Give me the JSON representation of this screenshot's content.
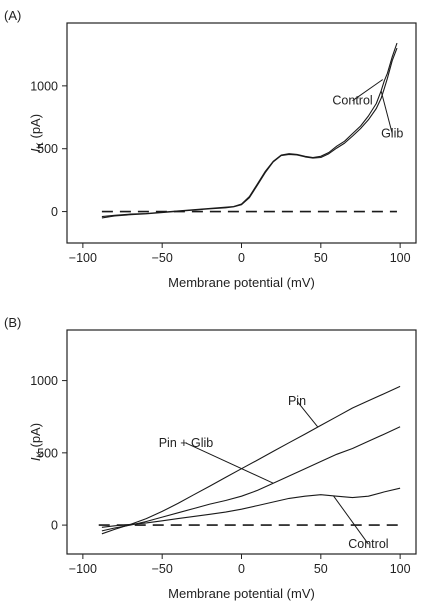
{
  "chart_data": [
    {
      "type": "line",
      "panel_label": "(A)",
      "xlabel": "Membrane potential (mV)",
      "ylabel_main": "I",
      "ylabel_sub": "K",
      "ylabel_unit": " (pA)",
      "xlim": [
        -110,
        110
      ],
      "ylim": [
        -250,
        1500
      ],
      "xticks": [
        -100,
        -50,
        0,
        50,
        100
      ],
      "yticks": [
        0,
        500,
        1000
      ],
      "zero_line": {
        "y": 0,
        "x": [
          -88,
          98
        ],
        "style": "dashed"
      },
      "series": [
        {
          "name": "Control",
          "points": [
            [
              -88,
              -40
            ],
            [
              -80,
              -30
            ],
            [
              -70,
              -20
            ],
            [
              -60,
              -15
            ],
            [
              -50,
              -5
            ],
            [
              -40,
              5
            ],
            [
              -30,
              15
            ],
            [
              -20,
              25
            ],
            [
              -10,
              35
            ],
            [
              -5,
              40
            ],
            [
              0,
              60
            ],
            [
              5,
              120
            ],
            [
              10,
              220
            ],
            [
              15,
              320
            ],
            [
              20,
              400
            ],
            [
              25,
              450
            ],
            [
              30,
              460
            ],
            [
              35,
              455
            ],
            [
              40,
              440
            ],
            [
              45,
              430
            ],
            [
              50,
              440
            ],
            [
              55,
              470
            ],
            [
              60,
              520
            ],
            [
              65,
              560
            ],
            [
              70,
              620
            ],
            [
              75,
              680
            ],
            [
              80,
              760
            ],
            [
              85,
              860
            ],
            [
              88,
              960
            ],
            [
              90,
              1040
            ],
            [
              92,
              1100
            ],
            [
              95,
              1230
            ],
            [
              98,
              1340
            ]
          ]
        },
        {
          "name": "Glib",
          "points": [
            [
              -88,
              -50
            ],
            [
              -80,
              -35
            ],
            [
              -70,
              -25
            ],
            [
              -60,
              -18
            ],
            [
              -50,
              -8
            ],
            [
              -40,
              2
            ],
            [
              -30,
              12
            ],
            [
              -20,
              22
            ],
            [
              -10,
              30
            ],
            [
              -5,
              38
            ],
            [
              0,
              55
            ],
            [
              5,
              110
            ],
            [
              10,
              210
            ],
            [
              15,
              310
            ],
            [
              20,
              395
            ],
            [
              25,
              445
            ],
            [
              30,
              455
            ],
            [
              35,
              450
            ],
            [
              40,
              435
            ],
            [
              45,
              425
            ],
            [
              50,
              430
            ],
            [
              55,
              460
            ],
            [
              60,
              505
            ],
            [
              65,
              545
            ],
            [
              70,
              600
            ],
            [
              75,
              660
            ],
            [
              80,
              730
            ],
            [
              85,
              820
            ],
            [
              88,
              900
            ],
            [
              90,
              980
            ],
            [
              92,
              1060
            ],
            [
              95,
              1200
            ],
            [
              98,
              1300
            ]
          ]
        }
      ],
      "annotations": [
        {
          "text": "Control",
          "x": 70,
          "y": 850,
          "target": [
            89,
            1050
          ]
        },
        {
          "text": "Glib",
          "x": 95,
          "y": 590,
          "target": [
            88,
            960
          ]
        }
      ]
    },
    {
      "type": "line",
      "panel_label": "(B)",
      "xlabel": "Membrane potential (mV)",
      "ylabel_main": "I",
      "ylabel_sub": "K",
      "ylabel_unit": " (pA)",
      "xlim": [
        -110,
        110
      ],
      "ylim": [
        -200,
        1350
      ],
      "xticks": [
        -100,
        -50,
        0,
        50,
        100
      ],
      "yticks": [
        0,
        500,
        1000
      ],
      "zero_line": {
        "y": 0,
        "x": [
          -90,
          100
        ],
        "style": "dashed"
      },
      "series": [
        {
          "name": "Pin",
          "points": [
            [
              -88,
              -60
            ],
            [
              -80,
              -30
            ],
            [
              -70,
              5
            ],
            [
              -60,
              45
            ],
            [
              -50,
              95
            ],
            [
              -40,
              150
            ],
            [
              -30,
              210
            ],
            [
              -20,
              270
            ],
            [
              -10,
              330
            ],
            [
              0,
              390
            ],
            [
              10,
              450
            ],
            [
              20,
              510
            ],
            [
              30,
              570
            ],
            [
              40,
              630
            ],
            [
              50,
              690
            ],
            [
              60,
              750
            ],
            [
              70,
              810
            ],
            [
              80,
              860
            ],
            [
              90,
              910
            ],
            [
              100,
              960
            ]
          ]
        },
        {
          "name": "Pin + Glib",
          "points": [
            [
              -88,
              -40
            ],
            [
              -80,
              -20
            ],
            [
              -70,
              0
            ],
            [
              -60,
              25
            ],
            [
              -50,
              55
            ],
            [
              -40,
              85
            ],
            [
              -30,
              115
            ],
            [
              -20,
              145
            ],
            [
              -10,
              170
            ],
            [
              0,
              200
            ],
            [
              10,
              240
            ],
            [
              20,
              290
            ],
            [
              30,
              340
            ],
            [
              40,
              390
            ],
            [
              50,
              440
            ],
            [
              60,
              490
            ],
            [
              70,
              530
            ],
            [
              80,
              580
            ],
            [
              90,
              630
            ],
            [
              100,
              680
            ]
          ]
        },
        {
          "name": "Control",
          "points": [
            [
              -88,
              -15
            ],
            [
              -80,
              -5
            ],
            [
              -70,
              5
            ],
            [
              -60,
              15
            ],
            [
              -50,
              30
            ],
            [
              -40,
              45
            ],
            [
              -30,
              60
            ],
            [
              -20,
              75
            ],
            [
              -10,
              90
            ],
            [
              0,
              110
            ],
            [
              10,
              135
            ],
            [
              20,
              160
            ],
            [
              30,
              185
            ],
            [
              40,
              200
            ],
            [
              50,
              210
            ],
            [
              60,
              200
            ],
            [
              70,
              190
            ],
            [
              80,
              200
            ],
            [
              90,
              230
            ],
            [
              100,
              255
            ]
          ]
        }
      ],
      "annotations": [
        {
          "text": "Pin",
          "x": 35,
          "y": 830,
          "target": [
            48,
            680
          ]
        },
        {
          "text": "Pin + Glib",
          "x": -35,
          "y": 540,
          "target": [
            20,
            290
          ]
        },
        {
          "text": "Control",
          "x": 80,
          "y": -160,
          "target": [
            58,
            202
          ]
        }
      ]
    }
  ]
}
